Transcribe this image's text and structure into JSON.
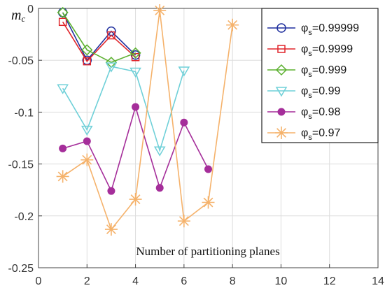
{
  "chart_data": {
    "type": "line",
    "xlabel": "Number of partitioning planes",
    "ylabel_main": "m",
    "ylabel_sub": "c",
    "xlim": [
      0,
      14
    ],
    "ylim": [
      -0.25,
      0
    ],
    "xticks": [
      0,
      2,
      4,
      6,
      8,
      10,
      12,
      14
    ],
    "xtick_labels": [
      "0",
      "2",
      "4",
      "6",
      "8",
      "10",
      "12",
      "14"
    ],
    "yticks": [
      0,
      -0.05,
      -0.1,
      -0.15,
      -0.2,
      -0.25
    ],
    "ytick_labels": [
      "0",
      "-0.05",
      "-0.1",
      "-0.15",
      "-0.2",
      "-0.25"
    ],
    "grid": true,
    "legend_position": "top-right",
    "series": [
      {
        "name": "φ",
        "name_sub": "s",
        "name_value": "=0.99999",
        "color": "#1f2f9e",
        "marker": "circle-open",
        "x": [
          1,
          2,
          3,
          4
        ],
        "y": [
          -0.004,
          -0.05,
          -0.022,
          -0.045
        ]
      },
      {
        "name": "φ",
        "name_sub": "s",
        "name_value": "=0.9999",
        "color": "#e0252b",
        "marker": "square-open",
        "x": [
          1,
          2,
          3,
          4
        ],
        "y": [
          -0.013,
          -0.051,
          -0.026,
          -0.047
        ]
      },
      {
        "name": "φ",
        "name_sub": "s",
        "name_value": "=0.999",
        "color": "#5bb02f",
        "marker": "diamond-open",
        "x": [
          1,
          2,
          3,
          4
        ],
        "y": [
          -0.004,
          -0.04,
          -0.052,
          -0.043
        ]
      },
      {
        "name": "φ",
        "name_sub": "s",
        "name_value": "=0.99",
        "color": "#6fd0d8",
        "marker": "triangle-down-open",
        "x": [
          1,
          2,
          3,
          4,
          5,
          6
        ],
        "y": [
          -0.077,
          -0.117,
          -0.056,
          -0.061,
          -0.137,
          -0.06
        ]
      },
      {
        "name": "φ",
        "name_sub": "s",
        "name_value": "=0.98",
        "color": "#a52e9a",
        "marker": "circle-filled",
        "x": [
          1,
          2,
          3,
          4,
          5,
          6,
          7
        ],
        "y": [
          -0.135,
          -0.128,
          -0.176,
          -0.095,
          -0.173,
          -0.11,
          -0.155
        ]
      },
      {
        "name": "φ",
        "name_sub": "s",
        "name_value": "=0.97",
        "color": "#f5b26b",
        "marker": "asterisk",
        "x": [
          1,
          2,
          3,
          4,
          5,
          6,
          7,
          8
        ],
        "y": [
          -0.162,
          -0.146,
          -0.213,
          -0.184,
          -0.002,
          -0.205,
          -0.187,
          -0.016
        ]
      }
    ]
  }
}
